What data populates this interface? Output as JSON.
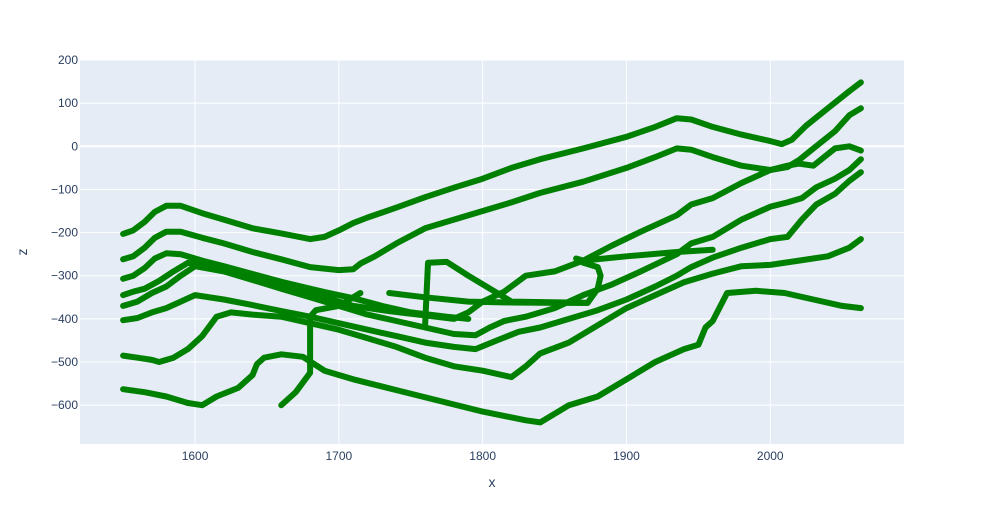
{
  "chart_data": {
    "type": "line",
    "title": "",
    "xlabel": "x",
    "ylabel": "z",
    "xlim": [
      1520,
      2093
    ],
    "ylim": [
      -690,
      200
    ],
    "xticks": [
      1600,
      1700,
      1800,
      1900,
      2000
    ],
    "yticks": [
      200,
      100,
      0,
      -100,
      -200,
      -300,
      -400,
      -500,
      -600
    ],
    "ytick_labels": [
      "200",
      "100",
      "0",
      "−100",
      "−200",
      "−300",
      "−400",
      "−500",
      "−600"
    ],
    "grid": true,
    "legend": "none",
    "colors": {
      "line": "#008000",
      "plot_bg": "#e5ecf6",
      "grid": "#ffffff",
      "text": "#2a3f5f"
    },
    "series": [
      {
        "x": [
          1550,
          1557,
          1565,
          1572,
          1580,
          1590,
          1605,
          1620,
          1640,
          1660,
          1680,
          1690,
          1700,
          1710,
          1720,
          1740,
          1760,
          1780,
          1800,
          1820,
          1840,
          1870,
          1900,
          1920,
          1935,
          1945,
          1960,
          1980,
          2000,
          2008,
          2015,
          2025,
          2040,
          2055,
          2063
        ],
        "y": [
          -203,
          -195,
          -175,
          -152,
          -138,
          -138,
          -155,
          -170,
          -190,
          -202,
          -215,
          -210,
          -195,
          -178,
          -165,
          -142,
          -118,
          -96,
          -75,
          -50,
          -30,
          -5,
          22,
          45,
          65,
          62,
          45,
          27,
          12,
          5,
          15,
          48,
          88,
          128,
          148
        ]
      },
      {
        "x": [
          1550,
          1557,
          1565,
          1572,
          1580,
          1590,
          1605,
          1620,
          1640,
          1660,
          1680,
          1700,
          1710,
          1715,
          1725,
          1740,
          1760,
          1780,
          1800,
          1820,
          1840,
          1870,
          1900,
          1920,
          1935,
          1945,
          1960,
          1980,
          2000,
          2012,
          2020,
          2030,
          2045,
          2055,
          2063
        ],
        "y": [
          -262,
          -255,
          -235,
          -212,
          -198,
          -198,
          -212,
          -225,
          -245,
          -262,
          -280,
          -287,
          -285,
          -272,
          -255,
          -225,
          -190,
          -170,
          -150,
          -130,
          -108,
          -82,
          -50,
          -25,
          -5,
          -8,
          -25,
          -45,
          -55,
          -48,
          -32,
          -5,
          35,
          72,
          88
        ]
      },
      {
        "x": [
          1550,
          1557,
          1565,
          1572,
          1580,
          1590,
          1605,
          1620,
          1640,
          1660,
          1680,
          1690,
          1710,
          1730,
          1750,
          1775,
          1790
        ],
        "y": [
          -307,
          -300,
          -282,
          -260,
          -248,
          -250,
          -265,
          -278,
          -296,
          -314,
          -330,
          -338,
          -352,
          -370,
          -385,
          -395,
          -400
        ]
      },
      {
        "x": [
          1550,
          1557,
          1565,
          1575,
          1585,
          1595,
          1610,
          1630,
          1650,
          1670,
          1690,
          1710,
          1735,
          1760,
          1780,
          1790,
          1800,
          1815,
          1830,
          1850,
          1870,
          1890,
          1910,
          1935,
          1945,
          1960,
          1980,
          2000,
          2012,
          2020,
          2030,
          2045,
          2055,
          2063
        ],
        "y": [
          -345,
          -337,
          -330,
          -312,
          -290,
          -270,
          -278,
          -296,
          -312,
          -330,
          -350,
          -370,
          -382,
          -392,
          -400,
          -385,
          -360,
          -337,
          -300,
          -290,
          -265,
          -230,
          -198,
          -160,
          -135,
          -120,
          -85,
          -55,
          -45,
          -40,
          -45,
          -5,
          0,
          -10
        ]
      },
      {
        "x": [
          1550,
          1560,
          1570,
          1580,
          1590,
          1600,
          1620,
          1640,
          1660,
          1680,
          1700,
          1720,
          1740,
          1760,
          1780,
          1795,
          1805,
          1815,
          1830,
          1850,
          1870,
          1890,
          1910,
          1935,
          1945,
          1960,
          1980,
          2000,
          2012,
          2022,
          2032,
          2045,
          2055,
          2063
        ],
        "y": [
          -370,
          -360,
          -340,
          -325,
          -300,
          -278,
          -290,
          -310,
          -330,
          -350,
          -370,
          -390,
          -405,
          -420,
          -435,
          -438,
          -420,
          -405,
          -395,
          -375,
          -345,
          -320,
          -290,
          -250,
          -225,
          -210,
          -170,
          -140,
          -130,
          -120,
          -95,
          -75,
          -55,
          -30
        ]
      },
      {
        "x": [
          1550,
          1560,
          1570,
          1580,
          1590,
          1600,
          1620,
          1640,
          1660,
          1680,
          1700,
          1720,
          1740,
          1760,
          1780,
          1795,
          1810,
          1825,
          1840,
          1860,
          1880,
          1900,
          1920,
          1935,
          1945,
          1960,
          1980,
          2000,
          2012,
          2022,
          2032,
          2045,
          2055,
          2063
        ],
        "y": [
          -403,
          -398,
          -385,
          -375,
          -360,
          -345,
          -355,
          -368,
          -382,
          -395,
          -410,
          -425,
          -440,
          -455,
          -465,
          -470,
          -450,
          -430,
          -420,
          -400,
          -380,
          -355,
          -325,
          -300,
          -280,
          -258,
          -235,
          -215,
          -210,
          -170,
          -135,
          -110,
          -80,
          -60
        ]
      },
      {
        "x": [
          1550,
          1560,
          1570,
          1575,
          1585,
          1595,
          1605,
          1615,
          1625,
          1640,
          1660,
          1680,
          1700,
          1720,
          1740,
          1760,
          1780,
          1800,
          1820,
          1830,
          1840,
          1860,
          1880,
          1900,
          1920,
          1940,
          1960,
          1980,
          2000,
          2020,
          2040,
          2055,
          2063
        ],
        "y": [
          -485,
          -490,
          -495,
          -500,
          -490,
          -470,
          -440,
          -395,
          -385,
          -390,
          -395,
          -410,
          -425,
          -445,
          -465,
          -490,
          -510,
          -520,
          -535,
          -510,
          -480,
          -455,
          -415,
          -375,
          -345,
          -315,
          -295,
          -278,
          -275,
          -265,
          -255,
          -235,
          -215
        ]
      },
      {
        "x": [
          1550,
          1565,
          1580,
          1595,
          1605,
          1615,
          1630,
          1640,
          1643,
          1648,
          1660,
          1675,
          1690,
          1710,
          1740,
          1770,
          1800,
          1830,
          1840,
          1850,
          1860,
          1880,
          1900,
          1920,
          1940,
          1950,
          1955,
          1960,
          1970,
          1990,
          2010,
          2030,
          2050,
          2063
        ],
        "y": [
          -563,
          -570,
          -580,
          -595,
          -600,
          -580,
          -560,
          -530,
          -505,
          -490,
          -482,
          -488,
          -520,
          -540,
          -565,
          -590,
          -615,
          -635,
          -640,
          -620,
          -600,
          -580,
          -540,
          -500,
          -470,
          -460,
          -420,
          -405,
          -340,
          -335,
          -340,
          -355,
          -370,
          -375
        ]
      },
      {
        "x": [
          1660,
          1670,
          1680,
          1680,
          1684,
          1700,
          1715
        ],
        "y": [
          -600,
          -570,
          -525,
          -395,
          -380,
          -370,
          -340
        ]
      },
      {
        "x": [
          1735,
          1760,
          1790,
          1820,
          1850,
          1873
        ],
        "y": [
          -340,
          -350,
          -360,
          -362,
          -363,
          -363
        ]
      },
      {
        "x": [
          1760,
          1762,
          1775,
          1790,
          1820,
          1860,
          1873,
          1880,
          1882,
          1880,
          1870,
          1865,
          1870,
          1900,
          1935,
          1960
        ],
        "y": [
          -415,
          -270,
          -268,
          -300,
          -360,
          -362,
          -363,
          -330,
          -300,
          -280,
          -270,
          -260,
          -265,
          -255,
          -245,
          -240
        ]
      }
    ]
  }
}
